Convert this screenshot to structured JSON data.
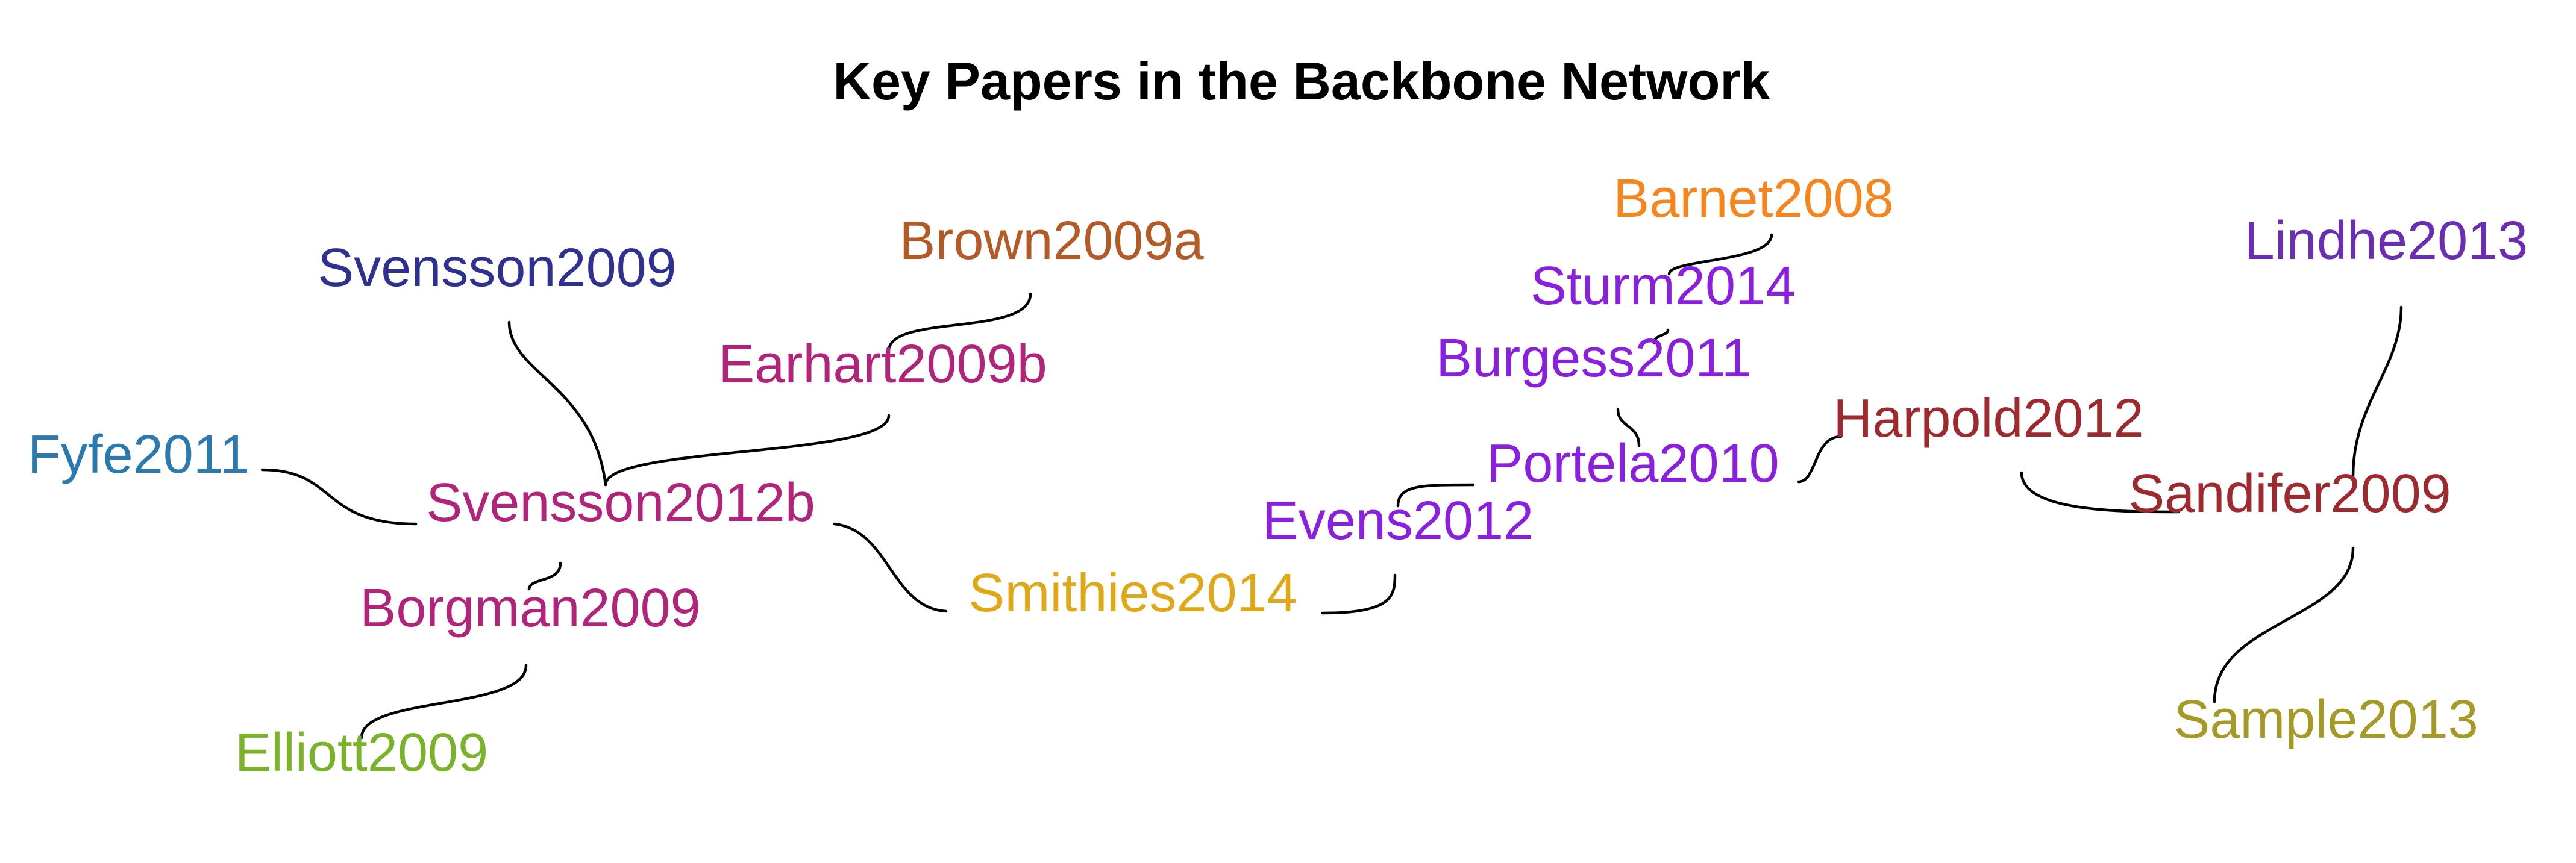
{
  "title": "Key Papers in the Backbone Network",
  "nodes": [
    {
      "id": "svensson2009",
      "label": "Svensson2009",
      "color": "#2e3192"
    },
    {
      "id": "brown2009a",
      "label": "Brown2009a",
      "color": "#b35a26"
    },
    {
      "id": "earhart2009b",
      "label": "Earhart2009b",
      "color": "#b2237a"
    },
    {
      "id": "fyfe2011",
      "label": "Fyfe2011",
      "color": "#2a7ab0"
    },
    {
      "id": "svensson2012b",
      "label": "Svensson2012b",
      "color": "#b2237a"
    },
    {
      "id": "borgman2009",
      "label": "Borgman2009",
      "color": "#b2237a"
    },
    {
      "id": "elliott2009",
      "label": "Elliott2009",
      "color": "#7ab32a"
    },
    {
      "id": "smithies2014",
      "label": "Smithies2014",
      "color": "#e0a817"
    },
    {
      "id": "evens2012",
      "label": "Evens2012",
      "color": "#8a1fe0"
    },
    {
      "id": "portela2010",
      "label": "Portela2010",
      "color": "#8a1fe0"
    },
    {
      "id": "burgess2011",
      "label": "Burgess2011",
      "color": "#8a1fe0"
    },
    {
      "id": "sturm2014",
      "label": "Sturm2014",
      "color": "#8a1fe0"
    },
    {
      "id": "barnet2008",
      "label": "Barnet2008",
      "color": "#f7851e"
    },
    {
      "id": "harpold2012",
      "label": "Harpold2012",
      "color": "#9e2a2f"
    },
    {
      "id": "sandifer2009",
      "label": "Sandifer2009",
      "color": "#9e2a2f"
    },
    {
      "id": "lindhe2013",
      "label": "Lindhe2013",
      "color": "#6a2db3"
    },
    {
      "id": "sample2013",
      "label": "Sample2013",
      "color": "#a69a26"
    }
  ],
  "edges": [
    {
      "source": "svensson2009",
      "target": "svensson2012b"
    },
    {
      "source": "brown2009a",
      "target": "earhart2009b"
    },
    {
      "source": "earhart2009b",
      "target": "svensson2012b"
    },
    {
      "source": "fyfe2011",
      "target": "svensson2012b"
    },
    {
      "source": "svensson2012b",
      "target": "borgman2009"
    },
    {
      "source": "borgman2009",
      "target": "elliott2009"
    },
    {
      "source": "svensson2012b",
      "target": "smithies2014"
    },
    {
      "source": "smithies2014",
      "target": "evens2012"
    },
    {
      "source": "evens2012",
      "target": "portela2010"
    },
    {
      "source": "portela2010",
      "target": "burgess2011"
    },
    {
      "source": "burgess2011",
      "target": "sturm2014"
    },
    {
      "source": "sturm2014",
      "target": "barnet2008"
    },
    {
      "source": "portela2010",
      "target": "harpold2012"
    },
    {
      "source": "harpold2012",
      "target": "sandifer2009"
    },
    {
      "source": "lindhe2013",
      "target": "sandifer2009"
    },
    {
      "source": "sandifer2009",
      "target": "sample2013"
    }
  ]
}
